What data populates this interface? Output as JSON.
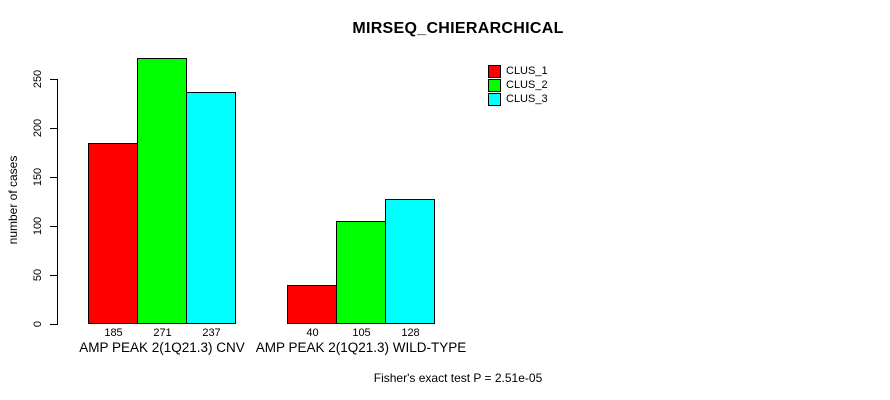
{
  "chart_data": {
    "type": "bar",
    "title": "MIRSEQ_CHIERARCHICAL",
    "ylabel": "number of cases",
    "categories": [
      "AMP PEAK 2(1Q21.3) CNV",
      "AMP PEAK 2(1Q21.3) WILD-TYPE"
    ],
    "series": [
      {
        "name": "CLUS_1",
        "color": "#ff0000",
        "values": [
          185,
          40
        ]
      },
      {
        "name": "CLUS_2",
        "color": "#00ff00",
        "values": [
          271,
          105
        ]
      },
      {
        "name": "CLUS_3",
        "color": "#00ffff",
        "values": [
          237,
          128
        ]
      }
    ],
    "bar_value_labels": [
      [
        185,
        271,
        237
      ],
      [
        40,
        105,
        128
      ]
    ],
    "yticks": [
      0,
      50,
      100,
      150,
      200,
      250
    ],
    "ylim": [
      0,
      250
    ],
    "grid": false,
    "legend_position": "top-right",
    "annotation": "Fisher's exact test P = 2.51e-05"
  },
  "colors": {
    "background": "#ffffff",
    "axis": "#000000",
    "text": "#000000",
    "clus_1": "#ff0000",
    "clus_2": "#00ff00",
    "clus_3": "#00ffff"
  }
}
